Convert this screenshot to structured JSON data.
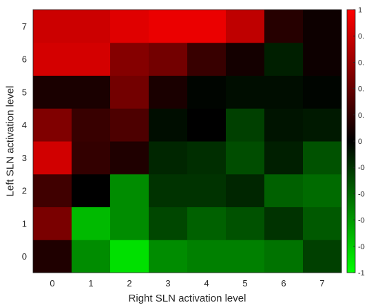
{
  "chart_data": {
    "type": "heatmap",
    "title": "",
    "xlabel": "Right SLN activation level",
    "ylabel": "Left SLN activation level",
    "x_categories": [
      "0",
      "1",
      "2",
      "3",
      "4",
      "5",
      "6",
      "7"
    ],
    "y_categories": [
      "0",
      "1",
      "2",
      "3",
      "4",
      "5",
      "6",
      "7"
    ],
    "color_range": [
      -1,
      1
    ],
    "colormap": {
      "negative": "#00ff00",
      "zero": "#000000",
      "positive": "#ff0000"
    },
    "colorbar_ticks": [
      "1",
      "0.",
      "0.",
      "0.",
      "0.",
      "0",
      "-0",
      "-0",
      "-0",
      "-0",
      "-1"
    ],
    "grid": false,
    "values": [
      [
        0.12,
        -0.55,
        -0.88,
        -0.55,
        -0.5,
        -0.5,
        -0.45,
        -0.25
      ],
      [
        0.48,
        -0.73,
        -0.55,
        -0.28,
        -0.38,
        -0.32,
        -0.2,
        -0.35
      ],
      [
        0.25,
        0.0,
        -0.55,
        -0.2,
        -0.2,
        -0.15,
        -0.38,
        -0.42
      ],
      [
        0.82,
        0.2,
        0.12,
        -0.15,
        -0.18,
        -0.3,
        -0.12,
        -0.32
      ],
      [
        0.5,
        0.22,
        0.3,
        -0.05,
        0.0,
        -0.25,
        -0.08,
        -0.1
      ],
      [
        0.1,
        0.1,
        0.45,
        0.1,
        -0.02,
        -0.05,
        -0.05,
        -0.02
      ],
      [
        0.83,
        0.83,
        0.52,
        0.45,
        0.22,
        0.08,
        -0.12,
        0.05
      ],
      [
        0.8,
        0.8,
        0.88,
        0.92,
        0.92,
        0.75,
        0.15,
        0.05
      ]
    ]
  }
}
